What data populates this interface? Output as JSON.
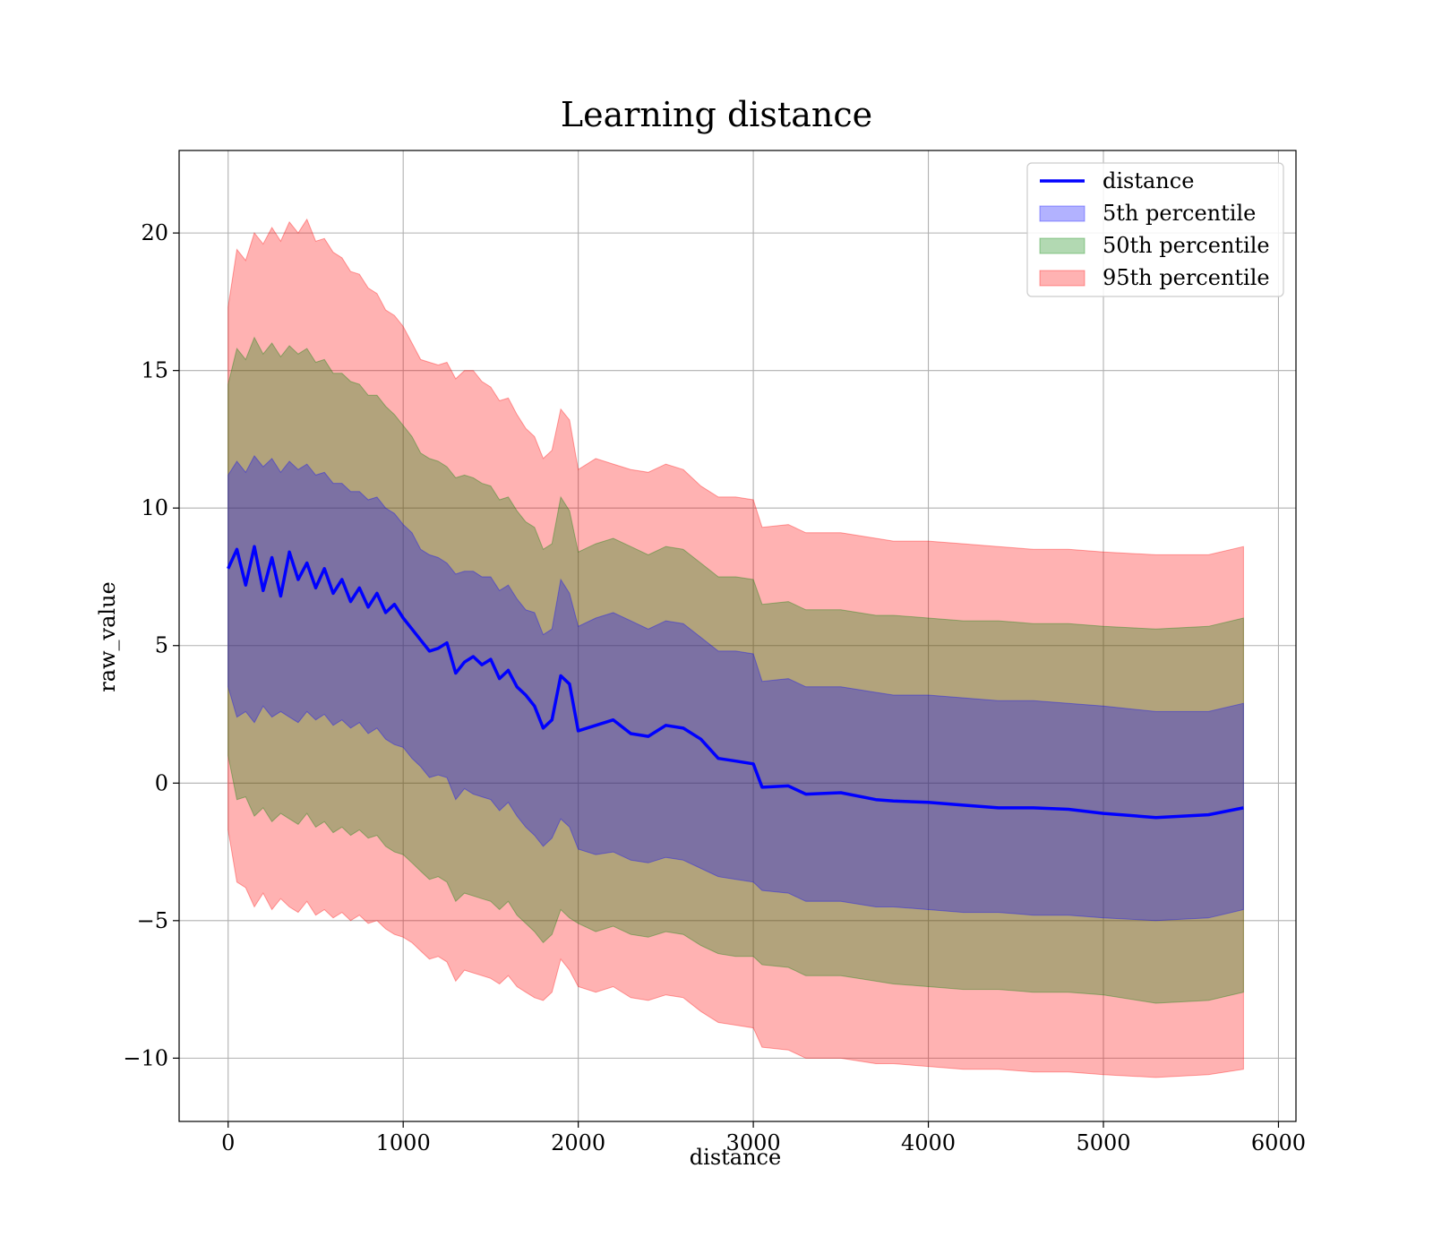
{
  "chart_data": {
    "type": "line",
    "title": "Learning distance",
    "xlabel": "distance",
    "ylabel": "raw_value",
    "xlim": [
      -280,
      6100
    ],
    "ylim": [
      -12.3,
      23
    ],
    "xticks": [
      0,
      1000,
      2000,
      3000,
      4000,
      5000,
      6000
    ],
    "xtick_labels": [
      "0",
      "1000",
      "2000",
      "3000",
      "4000",
      "5000",
      "6000"
    ],
    "yticks": [
      -10,
      -5,
      0,
      5,
      10,
      15,
      20
    ],
    "ytick_labels": [
      "−10",
      "−5",
      "0",
      "5",
      "10",
      "15",
      "20"
    ],
    "grid": true,
    "legend_position": "top-right",
    "colors": {
      "line": "#0000ff",
      "band_5": "#0000ff",
      "band_50": "#008000",
      "band_95": "#ff0000"
    },
    "legend": [
      {
        "label": "distance",
        "kind": "line",
        "color": "#0000ff"
      },
      {
        "label": "5th percentile",
        "kind": "patch",
        "color": "#0000ff"
      },
      {
        "label": "50th percentile",
        "kind": "patch",
        "color": "#008000"
      },
      {
        "label": "95th percentile",
        "kind": "patch",
        "color": "#ff0000"
      }
    ],
    "x": [
      0,
      50,
      100,
      150,
      200,
      250,
      300,
      350,
      400,
      450,
      500,
      550,
      600,
      650,
      700,
      750,
      800,
      850,
      900,
      950,
      1000,
      1050,
      1100,
      1150,
      1200,
      1250,
      1300,
      1350,
      1400,
      1450,
      1500,
      1550,
      1600,
      1650,
      1700,
      1750,
      1800,
      1850,
      1900,
      1950,
      2000,
      2100,
      2200,
      2300,
      2400,
      2500,
      2600,
      2700,
      2800,
      2900,
      3000,
      3050,
      3200,
      3300,
      3500,
      3700,
      3800,
      4000,
      4200,
      4400,
      4600,
      4800,
      5000,
      5300,
      5600,
      5800
    ],
    "series": [
      {
        "name": "distance",
        "values": [
          7.8,
          8.5,
          7.2,
          8.6,
          7.0,
          8.2,
          6.8,
          8.4,
          7.4,
          8.0,
          7.1,
          7.8,
          6.9,
          7.4,
          6.6,
          7.1,
          6.4,
          6.9,
          6.2,
          6.5,
          6.0,
          5.6,
          5.2,
          4.8,
          4.9,
          5.1,
          4.0,
          4.4,
          4.6,
          4.3,
          4.5,
          3.8,
          4.1,
          3.5,
          3.2,
          2.8,
          2.0,
          2.3,
          3.9,
          3.6,
          1.9,
          2.1,
          2.3,
          1.8,
          1.7,
          2.1,
          2.0,
          1.6,
          0.9,
          0.8,
          0.7,
          -0.15,
          -0.1,
          -0.4,
          -0.35,
          -0.6,
          -0.65,
          -0.7,
          -0.8,
          -0.9,
          -0.9,
          -0.95,
          -1.1,
          -1.25,
          -1.15,
          -0.9
        ]
      },
      {
        "name": "5th percentile",
        "lower": [
          3.5,
          2.4,
          2.6,
          2.2,
          2.8,
          2.4,
          2.6,
          2.4,
          2.2,
          2.6,
          2.3,
          2.5,
          2.1,
          2.3,
          2.0,
          2.2,
          1.8,
          2.0,
          1.6,
          1.4,
          1.3,
          0.9,
          0.6,
          0.2,
          0.3,
          0.2,
          -0.6,
          -0.2,
          -0.4,
          -0.5,
          -0.6,
          -1.0,
          -0.7,
          -1.2,
          -1.6,
          -1.9,
          -2.3,
          -2.0,
          -1.3,
          -1.6,
          -2.4,
          -2.6,
          -2.5,
          -2.8,
          -2.9,
          -2.7,
          -2.8,
          -3.1,
          -3.4,
          -3.5,
          -3.6,
          -3.9,
          -4.0,
          -4.3,
          -4.3,
          -4.5,
          -4.5,
          -4.6,
          -4.7,
          -4.7,
          -4.8,
          -4.8,
          -4.9,
          -5.0,
          -4.9,
          -4.6
        ],
        "upper": [
          11.2,
          11.7,
          11.3,
          11.9,
          11.5,
          11.8,
          11.3,
          11.7,
          11.4,
          11.6,
          11.2,
          11.3,
          10.9,
          10.9,
          10.6,
          10.6,
          10.3,
          10.4,
          10.0,
          9.8,
          9.4,
          9.1,
          8.5,
          8.3,
          8.2,
          8.0,
          7.6,
          7.7,
          7.7,
          7.5,
          7.5,
          7.0,
          7.2,
          6.7,
          6.3,
          6.2,
          5.4,
          5.6,
          7.4,
          6.9,
          5.7,
          6.0,
          6.2,
          5.9,
          5.6,
          5.9,
          5.8,
          5.3,
          4.8,
          4.8,
          4.7,
          3.7,
          3.8,
          3.5,
          3.5,
          3.3,
          3.2,
          3.2,
          3.1,
          3.0,
          3.0,
          2.9,
          2.8,
          2.6,
          2.6,
          2.9
        ]
      },
      {
        "name": "50th percentile",
        "lower": [
          1.0,
          -0.6,
          -0.5,
          -1.2,
          -0.9,
          -1.4,
          -1.1,
          -1.3,
          -1.5,
          -1.1,
          -1.6,
          -1.4,
          -1.8,
          -1.6,
          -1.9,
          -1.7,
          -2.0,
          -1.9,
          -2.3,
          -2.5,
          -2.6,
          -2.9,
          -3.2,
          -3.5,
          -3.4,
          -3.6,
          -4.3,
          -4.0,
          -4.1,
          -4.2,
          -4.3,
          -4.6,
          -4.3,
          -4.8,
          -5.1,
          -5.4,
          -5.8,
          -5.5,
          -4.6,
          -4.9,
          -5.1,
          -5.4,
          -5.2,
          -5.5,
          -5.6,
          -5.4,
          -5.5,
          -5.9,
          -6.2,
          -6.3,
          -6.3,
          -6.6,
          -6.7,
          -7.0,
          -7.0,
          -7.2,
          -7.3,
          -7.4,
          -7.5,
          -7.5,
          -7.6,
          -7.6,
          -7.7,
          -8.0,
          -7.9,
          -7.6
        ],
        "upper": [
          14.5,
          15.8,
          15.4,
          16.2,
          15.6,
          16.0,
          15.5,
          15.9,
          15.6,
          15.8,
          15.3,
          15.4,
          14.9,
          14.9,
          14.6,
          14.5,
          14.1,
          14.1,
          13.7,
          13.4,
          13.0,
          12.6,
          12.0,
          11.8,
          11.7,
          11.5,
          11.1,
          11.2,
          11.1,
          10.9,
          10.8,
          10.3,
          10.4,
          9.9,
          9.5,
          9.3,
          8.5,
          8.7,
          10.4,
          9.9,
          8.4,
          8.7,
          8.9,
          8.6,
          8.3,
          8.6,
          8.5,
          8.0,
          7.5,
          7.5,
          7.4,
          6.5,
          6.6,
          6.3,
          6.3,
          6.1,
          6.1,
          6.0,
          5.9,
          5.9,
          5.8,
          5.8,
          5.7,
          5.6,
          5.7,
          6.0
        ]
      },
      {
        "name": "95th percentile",
        "lower": [
          -1.7,
          -3.6,
          -3.8,
          -4.5,
          -4.0,
          -4.6,
          -4.2,
          -4.5,
          -4.7,
          -4.3,
          -4.8,
          -4.6,
          -4.9,
          -4.7,
          -5.0,
          -4.8,
          -5.1,
          -5.0,
          -5.3,
          -5.5,
          -5.6,
          -5.8,
          -6.1,
          -6.4,
          -6.3,
          -6.5,
          -7.2,
          -6.8,
          -6.9,
          -7.0,
          -7.1,
          -7.3,
          -7.0,
          -7.4,
          -7.6,
          -7.8,
          -7.9,
          -7.6,
          -6.4,
          -6.8,
          -7.4,
          -7.6,
          -7.4,
          -7.8,
          -7.9,
          -7.7,
          -7.8,
          -8.3,
          -8.7,
          -8.8,
          -8.9,
          -9.6,
          -9.7,
          -10.0,
          -10.0,
          -10.2,
          -10.2,
          -10.3,
          -10.4,
          -10.4,
          -10.5,
          -10.5,
          -10.6,
          -10.7,
          -10.6,
          -10.4
        ],
        "upper": [
          17.3,
          19.4,
          19.0,
          20.0,
          19.6,
          20.2,
          19.7,
          20.4,
          20.0,
          20.5,
          19.7,
          19.8,
          19.3,
          19.1,
          18.6,
          18.5,
          18.0,
          17.8,
          17.2,
          17.0,
          16.6,
          16.0,
          15.4,
          15.3,
          15.2,
          15.3,
          14.7,
          15.0,
          15.0,
          14.6,
          14.4,
          13.9,
          14.0,
          13.4,
          12.9,
          12.6,
          11.8,
          12.1,
          13.6,
          13.2,
          11.4,
          11.8,
          11.6,
          11.4,
          11.3,
          11.6,
          11.4,
          10.8,
          10.4,
          10.4,
          10.3,
          9.3,
          9.4,
          9.1,
          9.1,
          8.9,
          8.8,
          8.8,
          8.7,
          8.6,
          8.5,
          8.5,
          8.4,
          8.3,
          8.3,
          8.6
        ]
      }
    ]
  }
}
